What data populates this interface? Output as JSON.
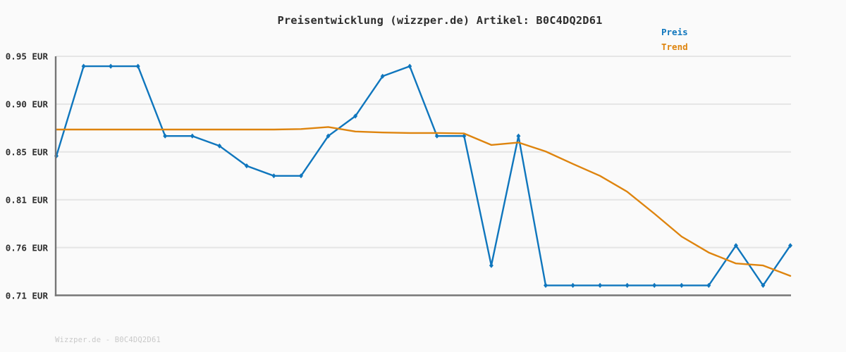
{
  "page": {
    "title": "Preisentwicklung (wizzper.de) Artikel: B0C4DQ2D61",
    "footer": "Wizzper.de - B0C4DQ2D61"
  },
  "colors": {
    "background": "#fafafa",
    "grid": "#e5e5e5",
    "axis": "#767676",
    "title_text": "#2e2e2e",
    "tick_text": "#2e2e2e",
    "footer_text": "#c9c9c9",
    "preis_blue": "#0f76bd",
    "trend_orange": "#de840e"
  },
  "chart_data": {
    "type": "line",
    "title": "Preisentwicklung (wizzper.de) Artikel: B0C4DQ2D61",
    "xlabel": "",
    "ylabel": "",
    "x": [
      1,
      2,
      3,
      4,
      5,
      6,
      7,
      8,
      9,
      10,
      11,
      12,
      13,
      14,
      15,
      16,
      17,
      18,
      19,
      20,
      21,
      22,
      23,
      24,
      25,
      26,
      27,
      28
    ],
    "xticks": [],
    "yticks": [
      "0.95 EUR",
      "0.90 EUR",
      "0.85 EUR",
      "0.81 EUR",
      "0.76 EUR",
      "0.71 EUR"
    ],
    "ylim": [
      0.71,
      0.95
    ],
    "grid": "horizontal",
    "legend_position": "top-right-above-plot",
    "series": [
      {
        "name": "Preis",
        "color": "#0f76bd",
        "marker": "diamond",
        "values": [
          0.85,
          0.94,
          0.94,
          0.94,
          0.87,
          0.87,
          0.86,
          0.84,
          0.83,
          0.83,
          0.87,
          0.89,
          0.93,
          0.94,
          0.87,
          0.87,
          0.74,
          0.87,
          0.72,
          0.72,
          0.72,
          0.72,
          0.72,
          0.72,
          0.72,
          0.76,
          0.72,
          0.76
        ]
      },
      {
        "name": "Trend",
        "color": "#de840e",
        "marker": "none",
        "values": [
          0.8765,
          0.8765,
          0.8765,
          0.8765,
          0.8765,
          0.8765,
          0.8765,
          0.8765,
          0.8765,
          0.877,
          0.879,
          0.8745,
          0.8735,
          0.873,
          0.873,
          0.8725,
          0.861,
          0.8635,
          0.8545,
          0.842,
          0.83,
          0.814,
          0.792,
          0.769,
          0.753,
          0.742,
          0.74,
          0.7295
        ]
      }
    ]
  }
}
